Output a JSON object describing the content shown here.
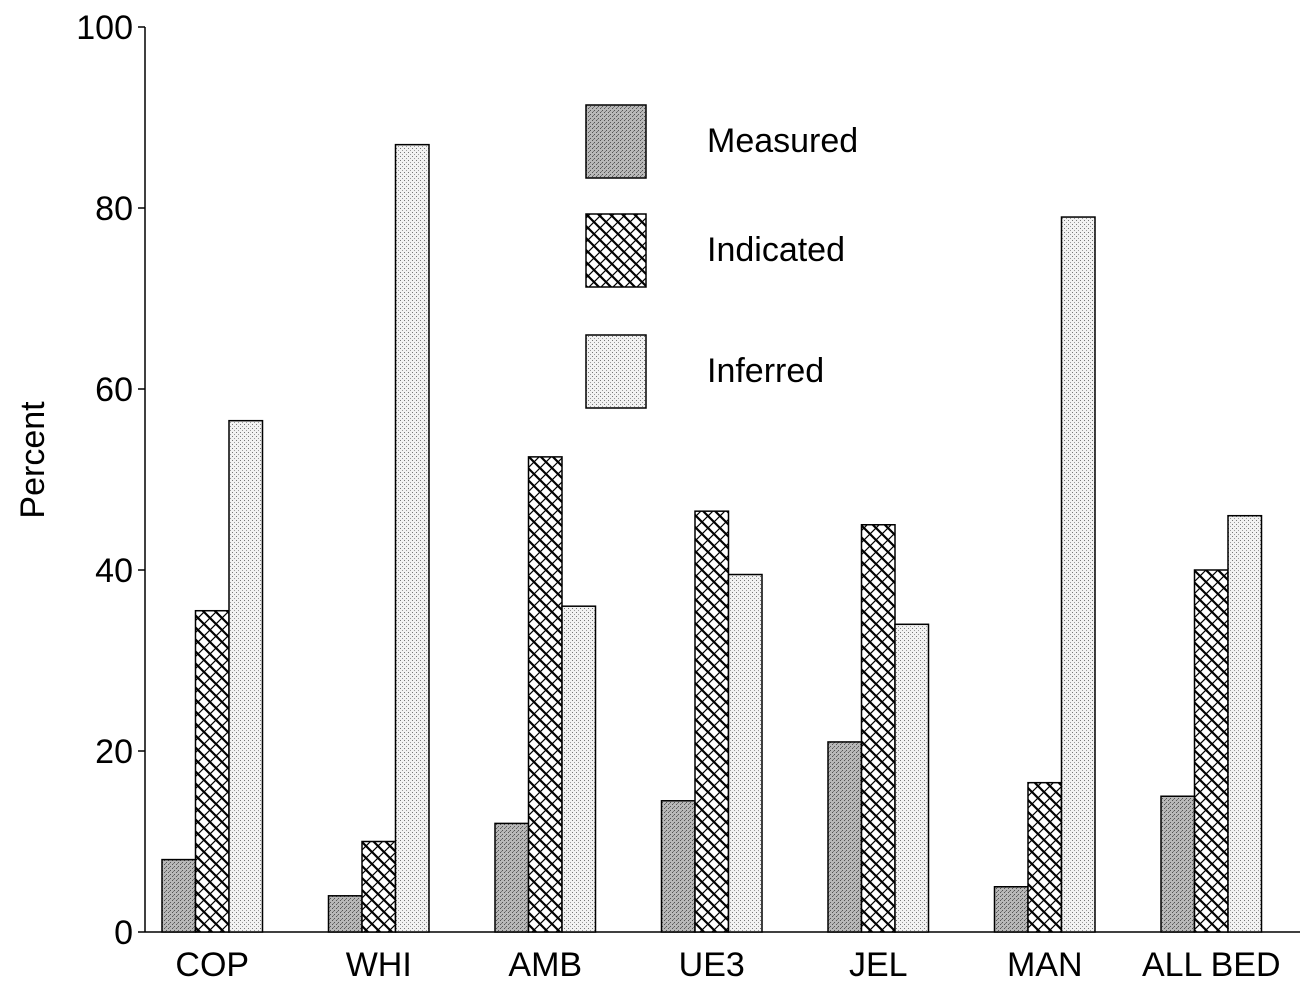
{
  "chart_data": {
    "type": "bar",
    "title": "",
    "xlabel": "",
    "ylabel": "Percent",
    "ylim": [
      0,
      100
    ],
    "yticks": [
      0,
      20,
      40,
      60,
      80,
      100
    ],
    "grid": false,
    "legend_position": "top-center",
    "categories": [
      "COP",
      "WHI",
      "AMB",
      "UE3",
      "JEL",
      "MAN",
      "ALL BED"
    ],
    "series": [
      {
        "name": "Measured",
        "pattern": "stipple-dark",
        "values": [
          8,
          4,
          12,
          14.5,
          21,
          5,
          15
        ]
      },
      {
        "name": "Indicated",
        "pattern": "crosshatch",
        "values": [
          35.5,
          10,
          52.5,
          46.5,
          45,
          16.5,
          40
        ]
      },
      {
        "name": "Inferred",
        "pattern": "stipple-light",
        "values": [
          56.5,
          87,
          36,
          39.5,
          34,
          79,
          46
        ]
      }
    ]
  }
}
